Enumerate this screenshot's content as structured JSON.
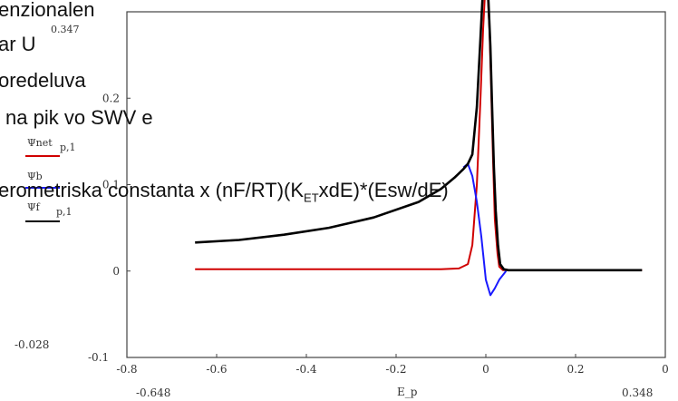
{
  "overlay_text": {
    "line1": "enzionalen",
    "line2": "ar U",
    "line3": "oredeluva",
    "line4": "na pik vo SWV e",
    "line5": "erometriska  constanta x (nF/RT)(K",
    "line5_sub": "ET",
    "line5_tail": "xdE)*(Esw/dE)"
  },
  "chart_data": {
    "type": "line",
    "xlabel": "E_p",
    "xlim": [
      -0.8,
      0.4
    ],
    "ylim": [
      -0.1,
      0.3
    ],
    "x_ticks": [
      "-0.8",
      "-0.6",
      "-0.4",
      "-0.2",
      "0",
      "0.2",
      "0"
    ],
    "y_ticks": [
      "0.2",
      "0.1",
      "0"
    ],
    "markers": {
      "y_min": "-0.028",
      "y_min_axis": "-0.1",
      "y_max": "0.347",
      "x_min": "-0.648",
      "x_max": "0.348"
    },
    "legend": [
      {
        "label": "Ψnet",
        "sub": "p,1",
        "color": "#d00000"
      },
      {
        "label": "Ψb",
        "sub": "",
        "color": "#1a1aff"
      },
      {
        "label": "Ψf",
        "sub": "p,1",
        "color": "#000000"
      }
    ],
    "series": [
      {
        "name": "Ψnet",
        "color": "#d00000",
        "x": [
          -0.648,
          -0.3,
          -0.1,
          -0.06,
          -0.04,
          -0.03,
          -0.02,
          -0.012,
          -0.006,
          -0.002,
          0.0,
          0.004,
          0.008,
          0.012,
          0.016,
          0.02,
          0.026,
          0.03,
          0.038,
          0.05,
          0.1,
          0.348
        ],
        "y": [
          0.002,
          0.002,
          0.002,
          0.003,
          0.008,
          0.03,
          0.1,
          0.2,
          0.28,
          0.32,
          0.33,
          0.32,
          0.28,
          0.21,
          0.13,
          0.06,
          0.02,
          0.005,
          0.001,
          0.001,
          0.001,
          0.001
        ]
      },
      {
        "name": "Ψb",
        "color": "#1a1aff",
        "x": [
          -0.05,
          -0.04,
          -0.03,
          -0.02,
          -0.01,
          0.0,
          0.01,
          0.02,
          0.03,
          0.045
        ],
        "y": [
          0.12,
          0.124,
          0.11,
          0.08,
          0.04,
          -0.01,
          -0.028,
          -0.02,
          -0.01,
          0.0
        ]
      },
      {
        "name": "Ψf",
        "color": "#000000",
        "x": [
          -0.648,
          -0.55,
          -0.45,
          -0.35,
          -0.25,
          -0.15,
          -0.1,
          -0.07,
          -0.05,
          -0.04,
          -0.03,
          -0.02,
          -0.012,
          -0.006,
          -0.002,
          0.0,
          0.003,
          0.006,
          0.01,
          0.014,
          0.018,
          0.022,
          0.027,
          0.032,
          0.04,
          0.05,
          0.06,
          0.08,
          0.12,
          0.2,
          0.348
        ],
        "y": [
          0.033,
          0.036,
          0.042,
          0.05,
          0.062,
          0.08,
          0.095,
          0.108,
          0.118,
          0.124,
          0.135,
          0.19,
          0.27,
          0.33,
          0.344,
          0.347,
          0.34,
          0.31,
          0.26,
          0.19,
          0.12,
          0.07,
          0.03,
          0.008,
          0.002,
          0.001,
          0.001,
          0.001,
          0.001,
          0.001,
          0.001
        ]
      }
    ]
  }
}
